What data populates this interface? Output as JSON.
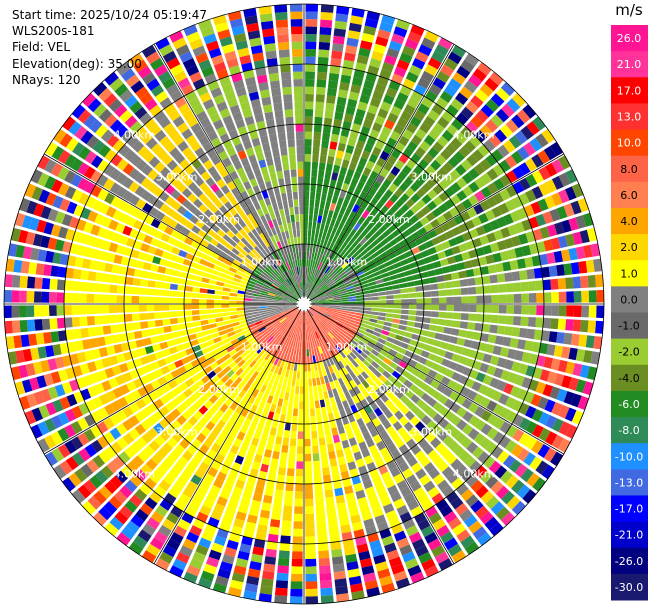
{
  "info": {
    "start_time": "Start time: 2025/10/24 05:19:47",
    "station": "WLS200s-181",
    "field": "Field: VEL",
    "elevation": "Elevation(deg): 35.00",
    "nrays": "NRays: 120"
  },
  "chart_data": {
    "type": "heatmap",
    "projection": "polar-ppi",
    "title": "",
    "n_rays": 120,
    "max_range_km": 5.0,
    "range_rings_km": [
      1,
      2,
      3,
      4,
      5
    ],
    "ring_labels": [
      "1.00km",
      "2.00km",
      "3.00km",
      "4.00km"
    ],
    "spokes_deg": [
      0,
      30,
      60,
      90,
      120,
      150,
      180,
      210,
      240,
      270,
      300,
      330
    ],
    "sector_summary": [
      {
        "azimuth_deg": [
          0,
          90
        ],
        "dominant_velocity_ms": [
          -6,
          -2
        ]
      },
      {
        "azimuth_deg": [
          90,
          150
        ],
        "dominant_velocity_ms": [
          -2,
          4
        ]
      },
      {
        "azimuth_deg": [
          150,
          360
        ],
        "dominant_velocity_ms": [
          2,
          6
        ]
      }
    ],
    "colorbar": {
      "unit": "m/s",
      "tick_labels": [
        "26.0",
        "21.0",
        "17.0",
        "13.0",
        "10.0",
        "8.0",
        "6.0",
        "4.0",
        "2.0",
        "1.0",
        "0.0",
        "-1.0",
        "-2.0",
        "-4.0",
        "-6.0",
        "-8.0",
        "-10.0",
        "-13.0",
        "-17.0",
        "-21.0",
        "-26.0",
        "-30.0"
      ],
      "colors": [
        "#ff1493",
        "#ff3399",
        "#ff0000",
        "#ff3030",
        "#ff4500",
        "#ff6347",
        "#ff7f50",
        "#ffa500",
        "#ffd700",
        "#ffff00",
        "#808080",
        "#696969",
        "#9acd32",
        "#6b8e23",
        "#228b22",
        "#2e8b57",
        "#1e90ff",
        "#4169e1",
        "#0000ff",
        "#0000cd",
        "#000080",
        "#191970"
      ]
    }
  }
}
